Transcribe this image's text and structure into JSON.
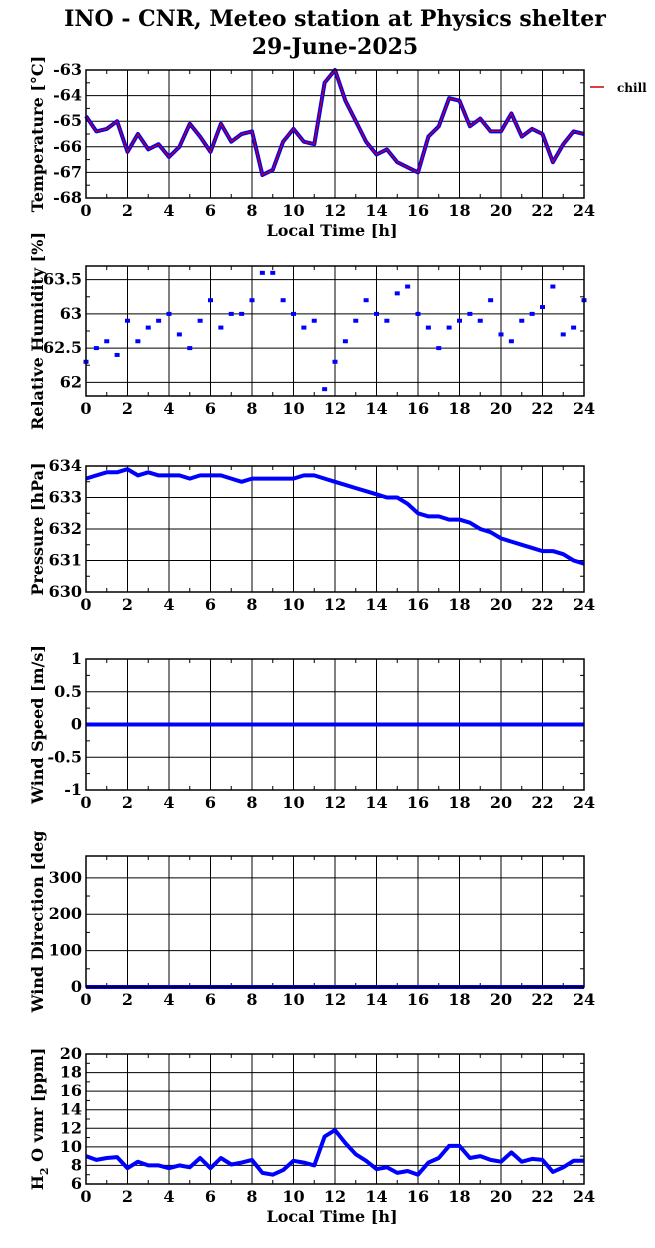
{
  "title_line1": "INO - CNR, Meteo station at Physics shelter",
  "title_line2": "29-June-2025",
  "colors": {
    "series": "#0000ff",
    "chill": "#cc0000",
    "grid": "#000000"
  },
  "chart_data": [
    {
      "id": "temperature",
      "type": "line",
      "ylabel": "Temperature [°C]",
      "xlabel": "Local Time [h]",
      "xlim": [
        0,
        24
      ],
      "ylim": [
        -68,
        -63
      ],
      "xticks": [
        0,
        2,
        4,
        6,
        8,
        10,
        12,
        14,
        16,
        18,
        20,
        22,
        24
      ],
      "yticks": [
        -68,
        -67,
        -66,
        -65,
        -64,
        -63
      ],
      "legend": [
        "chill"
      ],
      "grid": true,
      "x": [
        0,
        0.5,
        1,
        1.5,
        2,
        2.5,
        3,
        3.5,
        4,
        4.5,
        5,
        5.5,
        6,
        6.5,
        7,
        7.5,
        8,
        8.5,
        9,
        9.5,
        10,
        10.5,
        11,
        11.5,
        12,
        12.5,
        13,
        13.5,
        14,
        14.5,
        15,
        15.5,
        16,
        16.5,
        17,
        17.5,
        18,
        18.5,
        19,
        19.5,
        20,
        20.5,
        21,
        21.5,
        22,
        22.5,
        23,
        23.5,
        24
      ],
      "series": [
        {
          "values": [
            -64.8,
            -65.4,
            -65.3,
            -65.0,
            -66.2,
            -65.5,
            -66.1,
            -65.9,
            -66.4,
            -66.0,
            -65.1,
            -65.6,
            -66.2,
            -65.1,
            -65.8,
            -65.5,
            -65.4,
            -67.1,
            -66.9,
            -65.8,
            -65.3,
            -65.8,
            -65.9,
            -63.5,
            -63.0,
            -64.2,
            -65.0,
            -65.8,
            -66.3,
            -66.1,
            -66.6,
            -66.8,
            -67.0,
            -65.6,
            -65.2,
            -64.1,
            -64.2,
            -65.2,
            -64.9,
            -65.4,
            -65.4,
            -64.7,
            -65.6,
            -65.3,
            -65.5,
            -66.6,
            -65.9,
            -65.4,
            -65.5
          ]
        }
      ]
    },
    {
      "id": "humidity",
      "type": "scatter",
      "ylabel": "Relative Humidity [%]",
      "xlim": [
        0,
        24
      ],
      "ylim": [
        61.8,
        63.7
      ],
      "xticks": [
        0,
        2,
        4,
        6,
        8,
        10,
        12,
        14,
        16,
        18,
        20,
        22,
        24
      ],
      "yticks": [
        62,
        62.5,
        63,
        63.5
      ],
      "grid": true,
      "x": [
        0,
        0.5,
        1,
        1.5,
        2,
        2.5,
        3,
        3.5,
        4,
        4.5,
        5,
        5.5,
        6,
        6.5,
        7,
        7.5,
        8,
        8.5,
        9,
        9.5,
        10,
        10.5,
        11,
        11.5,
        12,
        12.5,
        13,
        13.5,
        14,
        14.5,
        15,
        15.5,
        16,
        16.5,
        17,
        17.5,
        18,
        18.5,
        19,
        19.5,
        20,
        20.5,
        21,
        21.5,
        22,
        22.5,
        23,
        23.5,
        24
      ],
      "series": [
        {
          "values": [
            62.3,
            62.5,
            62.6,
            62.4,
            62.9,
            62.6,
            62.8,
            62.9,
            63.0,
            62.7,
            62.5,
            62.9,
            63.2,
            62.8,
            63.0,
            63.0,
            63.2,
            63.6,
            63.6,
            63.2,
            63.0,
            62.8,
            62.9,
            61.9,
            62.3,
            62.6,
            62.9,
            63.2,
            63.0,
            62.9,
            63.3,
            63.4,
            63.0,
            62.8,
            62.5,
            62.8,
            62.9,
            63.0,
            62.9,
            63.2,
            62.7,
            62.6,
            62.9,
            63.0,
            63.1,
            63.4,
            62.7,
            62.8,
            63.2
          ]
        }
      ]
    },
    {
      "id": "pressure",
      "type": "line",
      "ylabel": "Pressure [hPa]",
      "xlim": [
        0,
        24
      ],
      "ylim": [
        630,
        634
      ],
      "xticks": [
        0,
        2,
        4,
        6,
        8,
        10,
        12,
        14,
        16,
        18,
        20,
        22,
        24
      ],
      "yticks": [
        630,
        631,
        632,
        633,
        634
      ],
      "grid": true,
      "x": [
        0,
        0.5,
        1,
        1.5,
        2,
        2.5,
        3,
        3.5,
        4,
        4.5,
        5,
        5.5,
        6,
        6.5,
        7,
        7.5,
        8,
        8.5,
        9,
        9.5,
        10,
        10.5,
        11,
        11.5,
        12,
        12.5,
        13,
        13.5,
        14,
        14.5,
        15,
        15.5,
        16,
        16.5,
        17,
        17.5,
        18,
        18.5,
        19,
        19.5,
        20,
        20.5,
        21,
        21.5,
        22,
        22.5,
        23,
        23.5,
        24
      ],
      "series": [
        {
          "values": [
            633.6,
            633.7,
            633.8,
            633.8,
            633.9,
            633.7,
            633.8,
            633.7,
            633.7,
            633.7,
            633.6,
            633.7,
            633.7,
            633.7,
            633.6,
            633.5,
            633.6,
            633.6,
            633.6,
            633.6,
            633.6,
            633.7,
            633.7,
            633.6,
            633.5,
            633.4,
            633.3,
            633.2,
            633.1,
            633.0,
            633.0,
            632.8,
            632.5,
            632.4,
            632.4,
            632.3,
            632.3,
            632.2,
            632.0,
            631.9,
            631.7,
            631.6,
            631.5,
            631.4,
            631.3,
            631.3,
            631.2,
            631.0,
            630.9
          ]
        }
      ]
    },
    {
      "id": "wind_speed",
      "type": "line",
      "ylabel": "Wind Speed [m/s]",
      "xlim": [
        0,
        24
      ],
      "ylim": [
        -1,
        1
      ],
      "xticks": [
        0,
        2,
        4,
        6,
        8,
        10,
        12,
        14,
        16,
        18,
        20,
        22,
        24
      ],
      "yticks": [
        -1,
        -0.5,
        0,
        0.5,
        1
      ],
      "grid": true,
      "x": [
        0,
        24
      ],
      "series": [
        {
          "values": [
            0,
            0
          ]
        }
      ]
    },
    {
      "id": "wind_direction",
      "type": "line",
      "ylabel": "Wind Direction [deg",
      "xlim": [
        0,
        24
      ],
      "ylim": [
        0,
        360
      ],
      "xticks": [
        0,
        2,
        4,
        6,
        8,
        10,
        12,
        14,
        16,
        18,
        20,
        22,
        24
      ],
      "yticks": [
        0,
        100,
        200,
        300
      ],
      "grid": true,
      "x": [
        0,
        24
      ],
      "series": [
        {
          "values": [
            0,
            0
          ]
        }
      ]
    },
    {
      "id": "h2o_vmr",
      "type": "line",
      "ylabel": "H",
      "ylabel_sub": "2",
      "ylabel_rest": "O vmr [ppm]",
      "xlabel": "Local Time [h]",
      "xlim": [
        0,
        24
      ],
      "ylim": [
        6,
        20
      ],
      "xticks": [
        0,
        2,
        4,
        6,
        8,
        10,
        12,
        14,
        16,
        18,
        20,
        22,
        24
      ],
      "yticks": [
        6,
        8,
        10,
        12,
        14,
        16,
        18,
        20
      ],
      "grid": true,
      "x": [
        0,
        0.5,
        1,
        1.5,
        2,
        2.5,
        3,
        3.5,
        4,
        4.5,
        5,
        5.5,
        6,
        6.5,
        7,
        7.5,
        8,
        8.5,
        9,
        9.5,
        10,
        10.5,
        11,
        11.5,
        12,
        12.5,
        13,
        13.5,
        14,
        14.5,
        15,
        15.5,
        16,
        16.5,
        17,
        17.5,
        18,
        18.5,
        19,
        19.5,
        20,
        20.5,
        21,
        21.5,
        22,
        22.5,
        23,
        23.5,
        24
      ],
      "series": [
        {
          "values": [
            9.0,
            8.6,
            8.8,
            8.9,
            7.7,
            8.4,
            8.0,
            8.0,
            7.7,
            8.0,
            7.8,
            8.8,
            7.7,
            8.8,
            8.1,
            8.3,
            8.6,
            7.2,
            7.0,
            7.5,
            8.5,
            8.3,
            8.0,
            11.1,
            11.8,
            10.4,
            9.2,
            8.5,
            7.6,
            7.8,
            7.2,
            7.4,
            7.0,
            8.3,
            8.8,
            10.1,
            10.1,
            8.8,
            9.0,
            8.6,
            8.4,
            9.4,
            8.4,
            8.7,
            8.6,
            7.3,
            7.8,
            8.5,
            8.5
          ]
        }
      ]
    }
  ]
}
